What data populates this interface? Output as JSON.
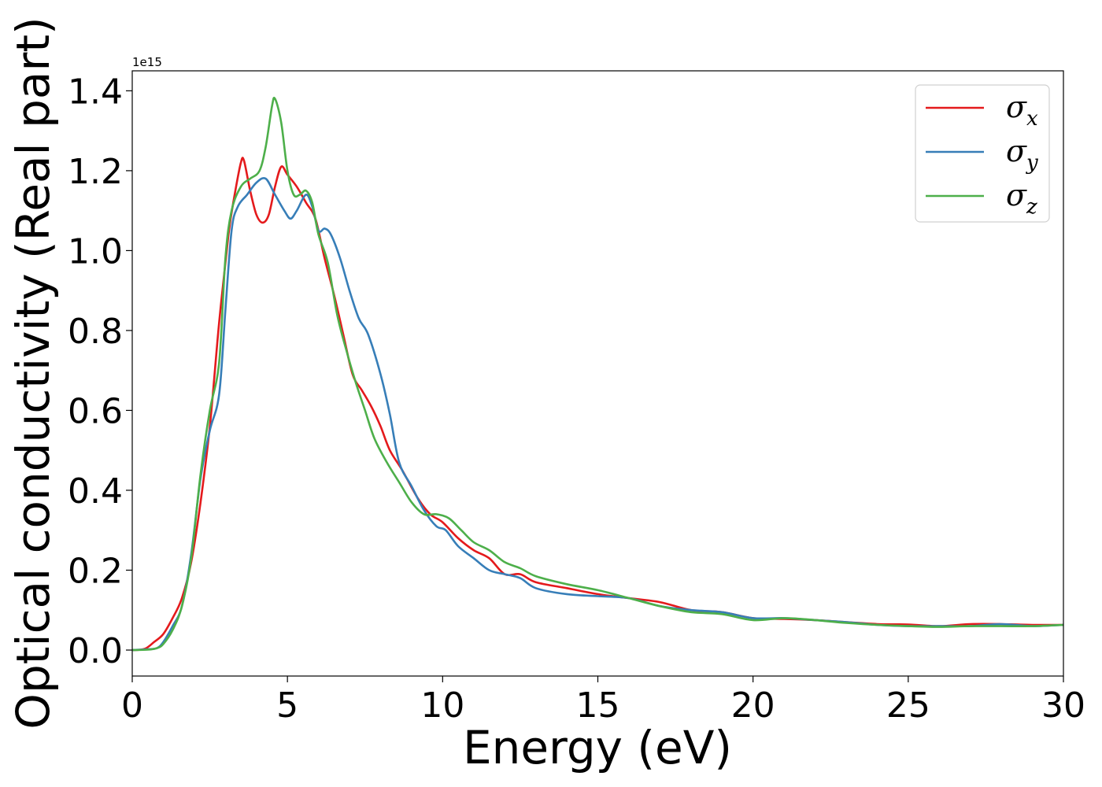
{
  "chart_data": {
    "type": "line",
    "title": "",
    "xlabel": "Energy (eV)",
    "ylabel": "Optical conductivity (Real part)",
    "y_offset_text": "1e15",
    "xlim": [
      0,
      30
    ],
    "ylim": [
      -0.065,
      1.45
    ],
    "xticks": [
      0,
      5,
      10,
      15,
      20,
      25,
      30
    ],
    "xtick_labels": [
      "0",
      "5",
      "10",
      "15",
      "20",
      "25",
      "30"
    ],
    "yticks": [
      0.0,
      0.2,
      0.4,
      0.6,
      0.8,
      1.0,
      1.2,
      1.4
    ],
    "ytick_labels": [
      "0.0",
      "0.2",
      "0.4",
      "0.6",
      "0.8",
      "1.0",
      "1.2",
      "1.4"
    ],
    "grid": false,
    "legend_position": "top-right",
    "series": [
      {
        "name": "σx",
        "symbol": "σ",
        "subscript": "x",
        "color": "#e41a1c",
        "points": [
          [
            0,
            0
          ],
          [
            0.4,
            0.003
          ],
          [
            0.7,
            0.02
          ],
          [
            1.0,
            0.04
          ],
          [
            1.3,
            0.08
          ],
          [
            1.6,
            0.13
          ],
          [
            1.9,
            0.22
          ],
          [
            2.2,
            0.37
          ],
          [
            2.5,
            0.56
          ],
          [
            2.8,
            0.82
          ],
          [
            3.1,
            1.04
          ],
          [
            3.3,
            1.14
          ],
          [
            3.5,
            1.22
          ],
          [
            3.6,
            1.225
          ],
          [
            3.8,
            1.15
          ],
          [
            4.0,
            1.09
          ],
          [
            4.2,
            1.07
          ],
          [
            4.4,
            1.09
          ],
          [
            4.6,
            1.16
          ],
          [
            4.8,
            1.21
          ],
          [
            5.0,
            1.19
          ],
          [
            5.3,
            1.16
          ],
          [
            5.6,
            1.12
          ],
          [
            5.9,
            1.08
          ],
          [
            6.2,
            0.98
          ],
          [
            6.5,
            0.89
          ],
          [
            6.8,
            0.79
          ],
          [
            7.1,
            0.69
          ],
          [
            7.4,
            0.65
          ],
          [
            7.7,
            0.61
          ],
          [
            8.0,
            0.56
          ],
          [
            8.3,
            0.5
          ],
          [
            8.7,
            0.45
          ],
          [
            9.2,
            0.38
          ],
          [
            9.6,
            0.34
          ],
          [
            10.0,
            0.32
          ],
          [
            10.5,
            0.28
          ],
          [
            11.0,
            0.25
          ],
          [
            11.5,
            0.23
          ],
          [
            12.0,
            0.19
          ],
          [
            12.5,
            0.19
          ],
          [
            13.0,
            0.17
          ],
          [
            14.0,
            0.155
          ],
          [
            15.0,
            0.14
          ],
          [
            16.0,
            0.13
          ],
          [
            17.0,
            0.12
          ],
          [
            18.0,
            0.1
          ],
          [
            19.0,
            0.095
          ],
          [
            20.0,
            0.08
          ],
          [
            21.0,
            0.078
          ],
          [
            22.0,
            0.075
          ],
          [
            23.0,
            0.07
          ],
          [
            24.0,
            0.065
          ],
          [
            25.0,
            0.064
          ],
          [
            26.0,
            0.06
          ],
          [
            27.0,
            0.065
          ],
          [
            28.0,
            0.065
          ],
          [
            29.0,
            0.063
          ],
          [
            30.0,
            0.063
          ]
        ]
      },
      {
        "name": "σy",
        "symbol": "σ",
        "subscript": "y",
        "color": "#377eb8",
        "points": [
          [
            0,
            0
          ],
          [
            0.5,
            0.002
          ],
          [
            0.8,
            0.005
          ],
          [
            1.0,
            0.02
          ],
          [
            1.3,
            0.06
          ],
          [
            1.6,
            0.11
          ],
          [
            1.9,
            0.24
          ],
          [
            2.2,
            0.43
          ],
          [
            2.5,
            0.55
          ],
          [
            2.8,
            0.64
          ],
          [
            3.0,
            0.85
          ],
          [
            3.2,
            1.05
          ],
          [
            3.4,
            1.11
          ],
          [
            3.7,
            1.14
          ],
          [
            4.0,
            1.17
          ],
          [
            4.3,
            1.18
          ],
          [
            4.6,
            1.14
          ],
          [
            4.9,
            1.1
          ],
          [
            5.1,
            1.08
          ],
          [
            5.3,
            1.1
          ],
          [
            5.6,
            1.14
          ],
          [
            5.8,
            1.11
          ],
          [
            6.0,
            1.05
          ],
          [
            6.2,
            1.055
          ],
          [
            6.4,
            1.04
          ],
          [
            6.7,
            0.98
          ],
          [
            7.0,
            0.9
          ],
          [
            7.3,
            0.83
          ],
          [
            7.6,
            0.79
          ],
          [
            8.0,
            0.69
          ],
          [
            8.3,
            0.59
          ],
          [
            8.6,
            0.47
          ],
          [
            9.0,
            0.41
          ],
          [
            9.4,
            0.35
          ],
          [
            9.8,
            0.31
          ],
          [
            10.1,
            0.3
          ],
          [
            10.5,
            0.26
          ],
          [
            11.0,
            0.23
          ],
          [
            11.5,
            0.2
          ],
          [
            12.0,
            0.19
          ],
          [
            12.5,
            0.18
          ],
          [
            13.0,
            0.155
          ],
          [
            14.0,
            0.14
          ],
          [
            15.0,
            0.135
          ],
          [
            16.0,
            0.13
          ],
          [
            17.0,
            0.11
          ],
          [
            18.0,
            0.1
          ],
          [
            19.0,
            0.095
          ],
          [
            20.0,
            0.08
          ],
          [
            21.0,
            0.08
          ],
          [
            22.0,
            0.075
          ],
          [
            23.0,
            0.07
          ],
          [
            24.0,
            0.063
          ],
          [
            25.0,
            0.06
          ],
          [
            26.0,
            0.06
          ],
          [
            27.0,
            0.06
          ],
          [
            28.0,
            0.065
          ],
          [
            29.0,
            0.06
          ],
          [
            30.0,
            0.063
          ]
        ]
      },
      {
        "name": "σz",
        "symbol": "σ",
        "subscript": "z",
        "color": "#4daf4a",
        "points": [
          [
            0,
            0
          ],
          [
            0.5,
            0.001
          ],
          [
            0.8,
            0.005
          ],
          [
            1.0,
            0.015
          ],
          [
            1.3,
            0.05
          ],
          [
            1.6,
            0.11
          ],
          [
            1.9,
            0.23
          ],
          [
            2.2,
            0.44
          ],
          [
            2.5,
            0.6
          ],
          [
            2.8,
            0.72
          ],
          [
            3.0,
            0.98
          ],
          [
            3.2,
            1.1
          ],
          [
            3.5,
            1.16
          ],
          [
            3.8,
            1.18
          ],
          [
            4.1,
            1.2
          ],
          [
            4.3,
            1.26
          ],
          [
            4.5,
            1.36
          ],
          [
            4.6,
            1.38
          ],
          [
            4.8,
            1.32
          ],
          [
            5.0,
            1.2
          ],
          [
            5.2,
            1.14
          ],
          [
            5.4,
            1.14
          ],
          [
            5.6,
            1.15
          ],
          [
            5.8,
            1.12
          ],
          [
            6.0,
            1.04
          ],
          [
            6.3,
            0.97
          ],
          [
            6.6,
            0.84
          ],
          [
            6.9,
            0.75
          ],
          [
            7.2,
            0.67
          ],
          [
            7.5,
            0.6
          ],
          [
            7.8,
            0.53
          ],
          [
            8.2,
            0.47
          ],
          [
            8.6,
            0.42
          ],
          [
            9.0,
            0.37
          ],
          [
            9.4,
            0.34
          ],
          [
            9.8,
            0.34
          ],
          [
            10.2,
            0.33
          ],
          [
            10.6,
            0.3
          ],
          [
            11.0,
            0.27
          ],
          [
            11.5,
            0.25
          ],
          [
            12.0,
            0.22
          ],
          [
            12.5,
            0.205
          ],
          [
            13.0,
            0.185
          ],
          [
            14.0,
            0.165
          ],
          [
            15.0,
            0.15
          ],
          [
            16.0,
            0.13
          ],
          [
            17.0,
            0.11
          ],
          [
            18.0,
            0.095
          ],
          [
            19.0,
            0.09
          ],
          [
            20.0,
            0.075
          ],
          [
            21.0,
            0.08
          ],
          [
            22.0,
            0.075
          ],
          [
            23.0,
            0.068
          ],
          [
            24.0,
            0.063
          ],
          [
            25.0,
            0.06
          ],
          [
            26.0,
            0.058
          ],
          [
            27.0,
            0.06
          ],
          [
            28.0,
            0.06
          ],
          [
            29.0,
            0.06
          ],
          [
            30.0,
            0.063
          ]
        ]
      }
    ]
  }
}
